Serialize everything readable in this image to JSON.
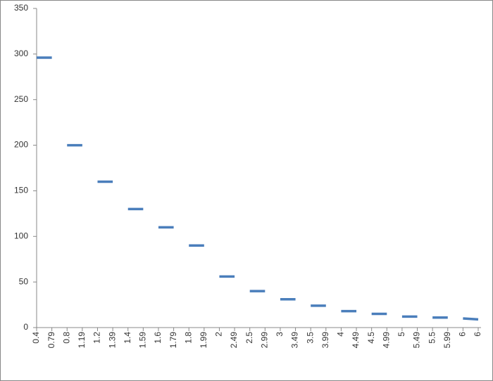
{
  "chart_data": {
    "type": "line",
    "categories": [
      "0.4",
      "0.79",
      "0.8",
      "1.19",
      "1.2",
      "1.39",
      "1.4",
      "1.59",
      "1.6",
      "1.79",
      "1.8",
      "1.99",
      "2",
      "2.49",
      "2.5",
      "2.99",
      "3",
      "3.49",
      "3.5",
      "3.99",
      "4",
      "4.49",
      "4.5",
      "4.99",
      "5",
      "5.49",
      "5.5",
      "5.99",
      "6",
      "6"
    ],
    "ylim": [
      0,
      350
    ],
    "yticks": [
      0,
      50,
      100,
      150,
      200,
      250,
      300,
      350
    ],
    "grid": false,
    "series": [
      {
        "color": "#4a7ebb",
        "values": [
          296,
          296,
          null,
          null,
          null,
          null,
          null,
          null,
          null,
          null,
          null,
          null,
          null,
          null,
          null,
          null,
          null,
          null,
          null,
          null,
          null,
          null,
          null,
          null,
          null,
          null,
          null,
          null,
          null,
          null
        ]
      },
      {
        "color": "#4a7ebb",
        "values": [
          null,
          null,
          200,
          200,
          null,
          null,
          null,
          null,
          null,
          null,
          null,
          null,
          null,
          null,
          null,
          null,
          null,
          null,
          null,
          null,
          null,
          null,
          null,
          null,
          null,
          null,
          null,
          null,
          null,
          null
        ]
      },
      {
        "color": "#4a7ebb",
        "values": [
          null,
          null,
          null,
          null,
          160,
          160,
          null,
          null,
          null,
          null,
          null,
          null,
          null,
          null,
          null,
          null,
          null,
          null,
          null,
          null,
          null,
          null,
          null,
          null,
          null,
          null,
          null,
          null,
          null,
          null
        ]
      },
      {
        "color": "#4a7ebb",
        "values": [
          null,
          null,
          null,
          null,
          null,
          null,
          130,
          130,
          null,
          null,
          null,
          null,
          null,
          null,
          null,
          null,
          null,
          null,
          null,
          null,
          null,
          null,
          null,
          null,
          null,
          null,
          null,
          null,
          null,
          null
        ]
      },
      {
        "color": "#4a7ebb",
        "values": [
          null,
          null,
          null,
          null,
          null,
          null,
          null,
          null,
          110,
          110,
          null,
          null,
          null,
          null,
          null,
          null,
          null,
          null,
          null,
          null,
          null,
          null,
          null,
          null,
          null,
          null,
          null,
          null,
          null,
          null
        ]
      },
      {
        "color": "#4a7ebb",
        "values": [
          null,
          null,
          null,
          null,
          null,
          null,
          null,
          null,
          null,
          null,
          90,
          90,
          null,
          null,
          null,
          null,
          null,
          null,
          null,
          null,
          null,
          null,
          null,
          null,
          null,
          null,
          null,
          null,
          null,
          null
        ]
      },
      {
        "color": "#4a7ebb",
        "values": [
          null,
          null,
          null,
          null,
          null,
          null,
          null,
          null,
          null,
          null,
          null,
          null,
          56,
          56,
          null,
          null,
          null,
          null,
          null,
          null,
          null,
          null,
          null,
          null,
          null,
          null,
          null,
          null,
          null,
          null
        ]
      },
      {
        "color": "#4a7ebb",
        "values": [
          null,
          null,
          null,
          null,
          null,
          null,
          null,
          null,
          null,
          null,
          null,
          null,
          null,
          null,
          40,
          40,
          null,
          null,
          null,
          null,
          null,
          null,
          null,
          null,
          null,
          null,
          null,
          null,
          null,
          null
        ]
      },
      {
        "color": "#4a7ebb",
        "values": [
          null,
          null,
          null,
          null,
          null,
          null,
          null,
          null,
          null,
          null,
          null,
          null,
          null,
          null,
          null,
          null,
          31,
          31,
          null,
          null,
          null,
          null,
          null,
          null,
          null,
          null,
          null,
          null,
          null,
          null
        ]
      },
      {
        "color": "#4a7ebb",
        "values": [
          null,
          null,
          null,
          null,
          null,
          null,
          null,
          null,
          null,
          null,
          null,
          null,
          null,
          null,
          null,
          null,
          null,
          null,
          24,
          24,
          null,
          null,
          null,
          null,
          null,
          null,
          null,
          null,
          null,
          null
        ]
      },
      {
        "color": "#4a7ebb",
        "values": [
          null,
          null,
          null,
          null,
          null,
          null,
          null,
          null,
          null,
          null,
          null,
          null,
          null,
          null,
          null,
          null,
          null,
          null,
          null,
          null,
          18,
          18,
          null,
          null,
          null,
          null,
          null,
          null,
          null,
          null
        ]
      },
      {
        "color": "#4a7ebb",
        "values": [
          null,
          null,
          null,
          null,
          null,
          null,
          null,
          null,
          null,
          null,
          null,
          null,
          null,
          null,
          null,
          null,
          null,
          null,
          null,
          null,
          null,
          null,
          15,
          15,
          null,
          null,
          null,
          null,
          null,
          null
        ]
      },
      {
        "color": "#4a7ebb",
        "values": [
          null,
          null,
          null,
          null,
          null,
          null,
          null,
          null,
          null,
          null,
          null,
          null,
          null,
          null,
          null,
          null,
          null,
          null,
          null,
          null,
          null,
          null,
          null,
          null,
          12,
          12,
          null,
          null,
          null,
          null
        ]
      },
      {
        "color": "#4a7ebb",
        "values": [
          null,
          null,
          null,
          null,
          null,
          null,
          null,
          null,
          null,
          null,
          null,
          null,
          null,
          null,
          null,
          null,
          null,
          null,
          null,
          null,
          null,
          null,
          null,
          null,
          null,
          null,
          11,
          11,
          null,
          null
        ]
      },
      {
        "color": "#4a7ebb",
        "values": [
          null,
          null,
          null,
          null,
          null,
          null,
          null,
          null,
          null,
          null,
          null,
          null,
          null,
          null,
          null,
          null,
          null,
          null,
          null,
          null,
          null,
          null,
          null,
          null,
          null,
          null,
          null,
          null,
          10,
          9
        ]
      }
    ]
  }
}
